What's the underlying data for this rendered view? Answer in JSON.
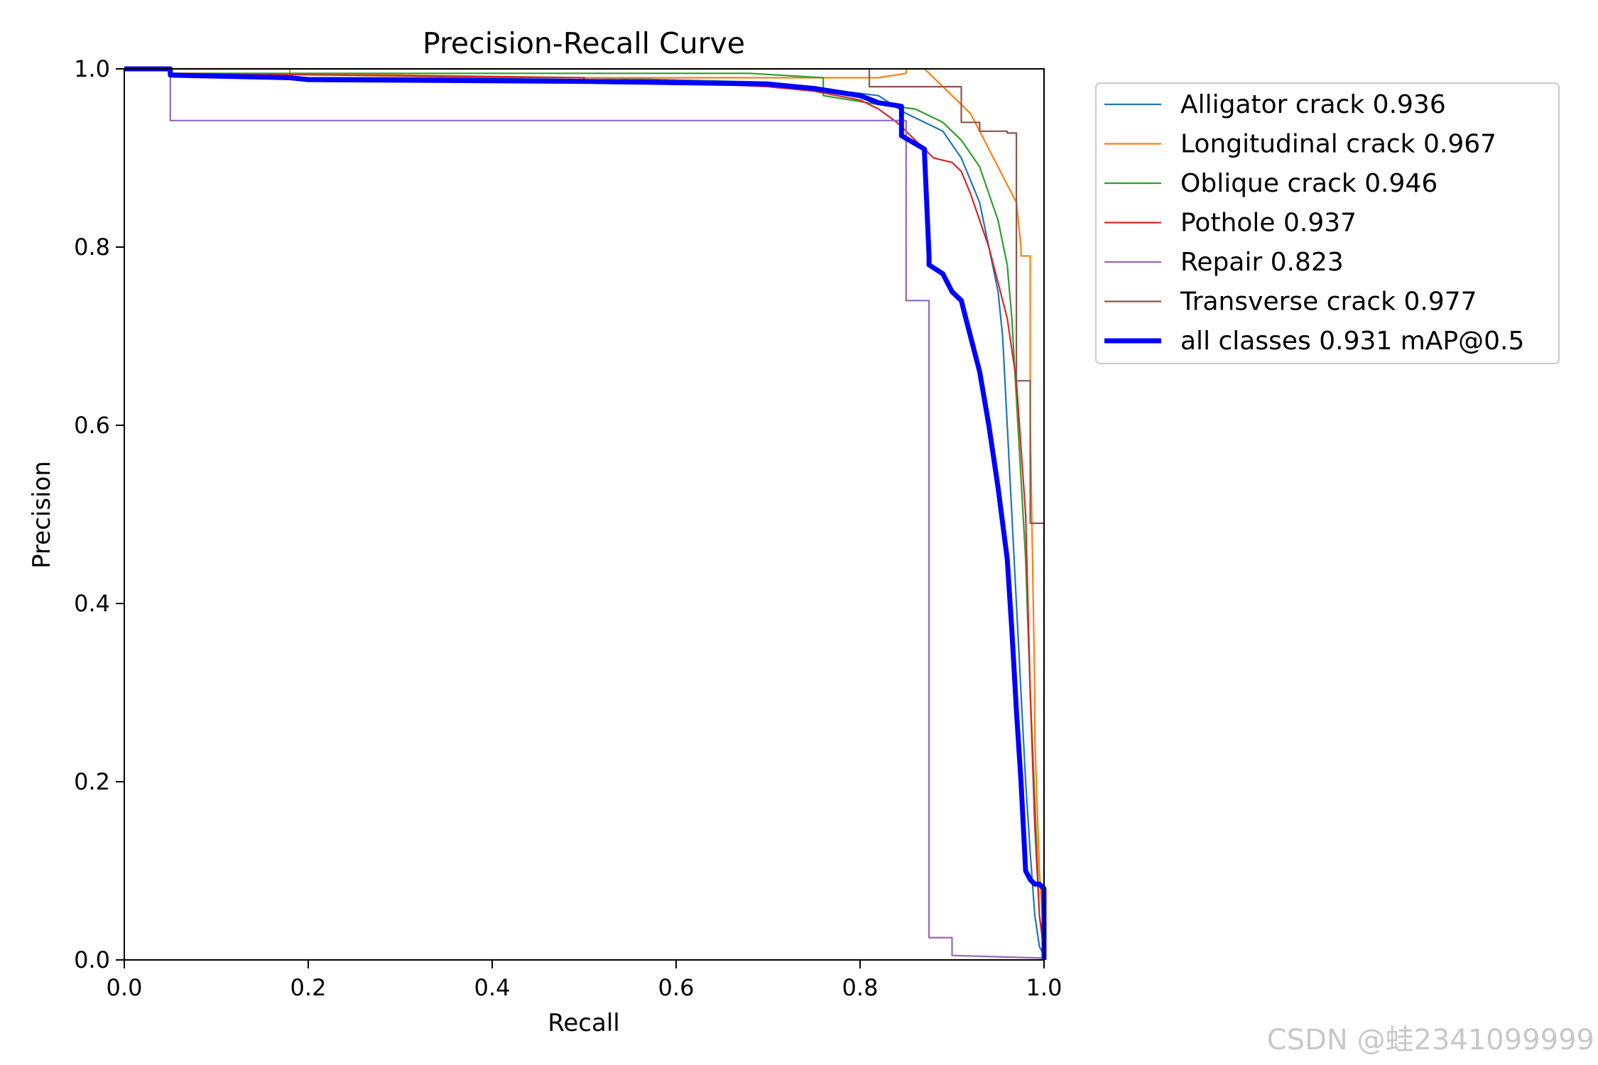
{
  "chart_data": {
    "type": "line",
    "title": "Precision-Recall Curve",
    "xlabel": "Recall",
    "ylabel": "Precision",
    "xlim": [
      0,
      1
    ],
    "ylim": [
      0,
      1
    ],
    "xticks": [
      "0.0",
      "0.2",
      "0.4",
      "0.6",
      "0.8",
      "1.0"
    ],
    "yticks": [
      "0.0",
      "0.2",
      "0.4",
      "0.6",
      "0.8",
      "1.0"
    ],
    "grid": false,
    "legend_position": "outside-upper-right",
    "series": [
      {
        "name": "Alligator crack 0.936",
        "color": "#1f77b4",
        "width": "thin",
        "x": [
          0,
          0.05,
          0.05,
          0.2,
          0.5,
          0.7,
          0.82,
          0.85,
          0.87,
          0.89,
          0.91,
          0.93,
          0.94,
          0.95,
          0.955,
          0.96,
          0.965,
          0.97,
          0.975,
          0.98,
          0.985,
          0.99,
          0.995,
          1.0,
          1.0
        ],
        "y": [
          1.0,
          1.0,
          0.995,
          0.99,
          0.99,
          0.985,
          0.97,
          0.95,
          0.94,
          0.93,
          0.9,
          0.85,
          0.8,
          0.75,
          0.7,
          0.6,
          0.5,
          0.4,
          0.3,
          0.2,
          0.12,
          0.05,
          0.015,
          0.005,
          0
        ]
      },
      {
        "name": "Longitudinal crack 0.967",
        "color": "#ff7f0e",
        "width": "thin",
        "x": [
          0,
          0.18,
          0.18,
          0.5,
          0.7,
          0.82,
          0.85,
          0.85,
          0.87,
          0.9,
          0.92,
          0.93,
          0.94,
          0.95,
          0.96,
          0.97,
          0.975,
          0.975,
          0.985,
          0.985,
          0.99,
          0.99,
          0.995,
          1.0,
          1.0
        ],
        "y": [
          1.0,
          1.0,
          0.995,
          0.99,
          0.99,
          0.99,
          0.995,
          1.0,
          1.0,
          0.97,
          0.95,
          0.93,
          0.91,
          0.89,
          0.87,
          0.85,
          0.8,
          0.79,
          0.79,
          0.6,
          0.3,
          0.25,
          0.1,
          0.02,
          0
        ]
      },
      {
        "name": "Oblique crack 0.946",
        "color": "#2ca02c",
        "width": "thin",
        "x": [
          0,
          0.05,
          0.05,
          0.5,
          0.6,
          0.68,
          0.76,
          0.76,
          0.82,
          0.86,
          0.89,
          0.91,
          0.93,
          0.94,
          0.95,
          0.96,
          0.965,
          0.97,
          0.975,
          0.98,
          0.985,
          0.99,
          0.995,
          1.0,
          1.0
        ],
        "y": [
          1.0,
          1.0,
          0.995,
          0.995,
          0.995,
          0.995,
          0.99,
          0.97,
          0.96,
          0.955,
          0.94,
          0.92,
          0.89,
          0.86,
          0.83,
          0.78,
          0.72,
          0.63,
          0.54,
          0.45,
          0.3,
          0.18,
          0.05,
          0.01,
          0
        ]
      },
      {
        "name": "Pothole 0.937",
        "color": "#d62728",
        "width": "thin",
        "x": [
          0,
          0.05,
          0.05,
          0.5,
          0.5,
          0.6,
          0.7,
          0.75,
          0.8,
          0.82,
          0.84,
          0.86,
          0.88,
          0.9,
          0.91,
          0.92,
          0.93,
          0.94,
          0.95,
          0.96,
          0.97,
          0.98,
          0.985,
          0.99,
          0.995,
          1.0,
          1.0
        ],
        "y": [
          1.0,
          1.0,
          0.995,
          0.99,
          0.985,
          0.985,
          0.98,
          0.975,
          0.965,
          0.955,
          0.94,
          0.92,
          0.9,
          0.895,
          0.885,
          0.86,
          0.83,
          0.8,
          0.76,
          0.72,
          0.65,
          0.5,
          0.3,
          0.15,
          0.05,
          0.01,
          0
        ]
      },
      {
        "name": "Repair 0.823",
        "color": "#9467bd",
        "width": "thin",
        "x": [
          0,
          0.05,
          0.05,
          0.85,
          0.85,
          0.875,
          0.875,
          0.9,
          0.9,
          1.0,
          1.0
        ],
        "y": [
          1.0,
          1.0,
          0.942,
          0.942,
          0.74,
          0.74,
          0.025,
          0.025,
          0.005,
          0.002,
          0
        ]
      },
      {
        "name": "Transverse crack 0.977",
        "color": "#8c564b",
        "width": "thin",
        "x": [
          0,
          0.81,
          0.81,
          0.91,
          0.91,
          0.93,
          0.93,
          0.96,
          0.96,
          0.97,
          0.97,
          0.985,
          0.985,
          1.0,
          1.0
        ],
        "y": [
          1.0,
          1.0,
          0.98,
          0.98,
          0.94,
          0.94,
          0.93,
          0.93,
          0.928,
          0.928,
          0.65,
          0.65,
          0.49,
          0.49,
          0
        ]
      },
      {
        "name": "all classes 0.931 mAP@0.5",
        "color": "#0000ff",
        "width": "thick",
        "x": [
          0,
          0.05,
          0.05,
          0.18,
          0.2,
          0.5,
          0.7,
          0.75,
          0.8,
          0.82,
          0.845,
          0.845,
          0.87,
          0.87,
          0.875,
          0.875,
          0.89,
          0.9,
          0.91,
          0.915,
          0.92,
          0.93,
          0.94,
          0.95,
          0.96,
          0.965,
          0.97,
          0.975,
          0.98,
          0.985,
          0.99,
          0.995,
          1.0,
          1.0
        ],
        "y": [
          1.0,
          1.0,
          0.993,
          0.99,
          0.988,
          0.986,
          0.983,
          0.978,
          0.97,
          0.962,
          0.958,
          0.925,
          0.91,
          0.905,
          0.79,
          0.78,
          0.77,
          0.75,
          0.74,
          0.72,
          0.7,
          0.66,
          0.6,
          0.53,
          0.45,
          0.37,
          0.28,
          0.2,
          0.1,
          0.09,
          0.085,
          0.085,
          0.08,
          0
        ]
      }
    ]
  },
  "watermark": "CSDN @蛙2341099999"
}
